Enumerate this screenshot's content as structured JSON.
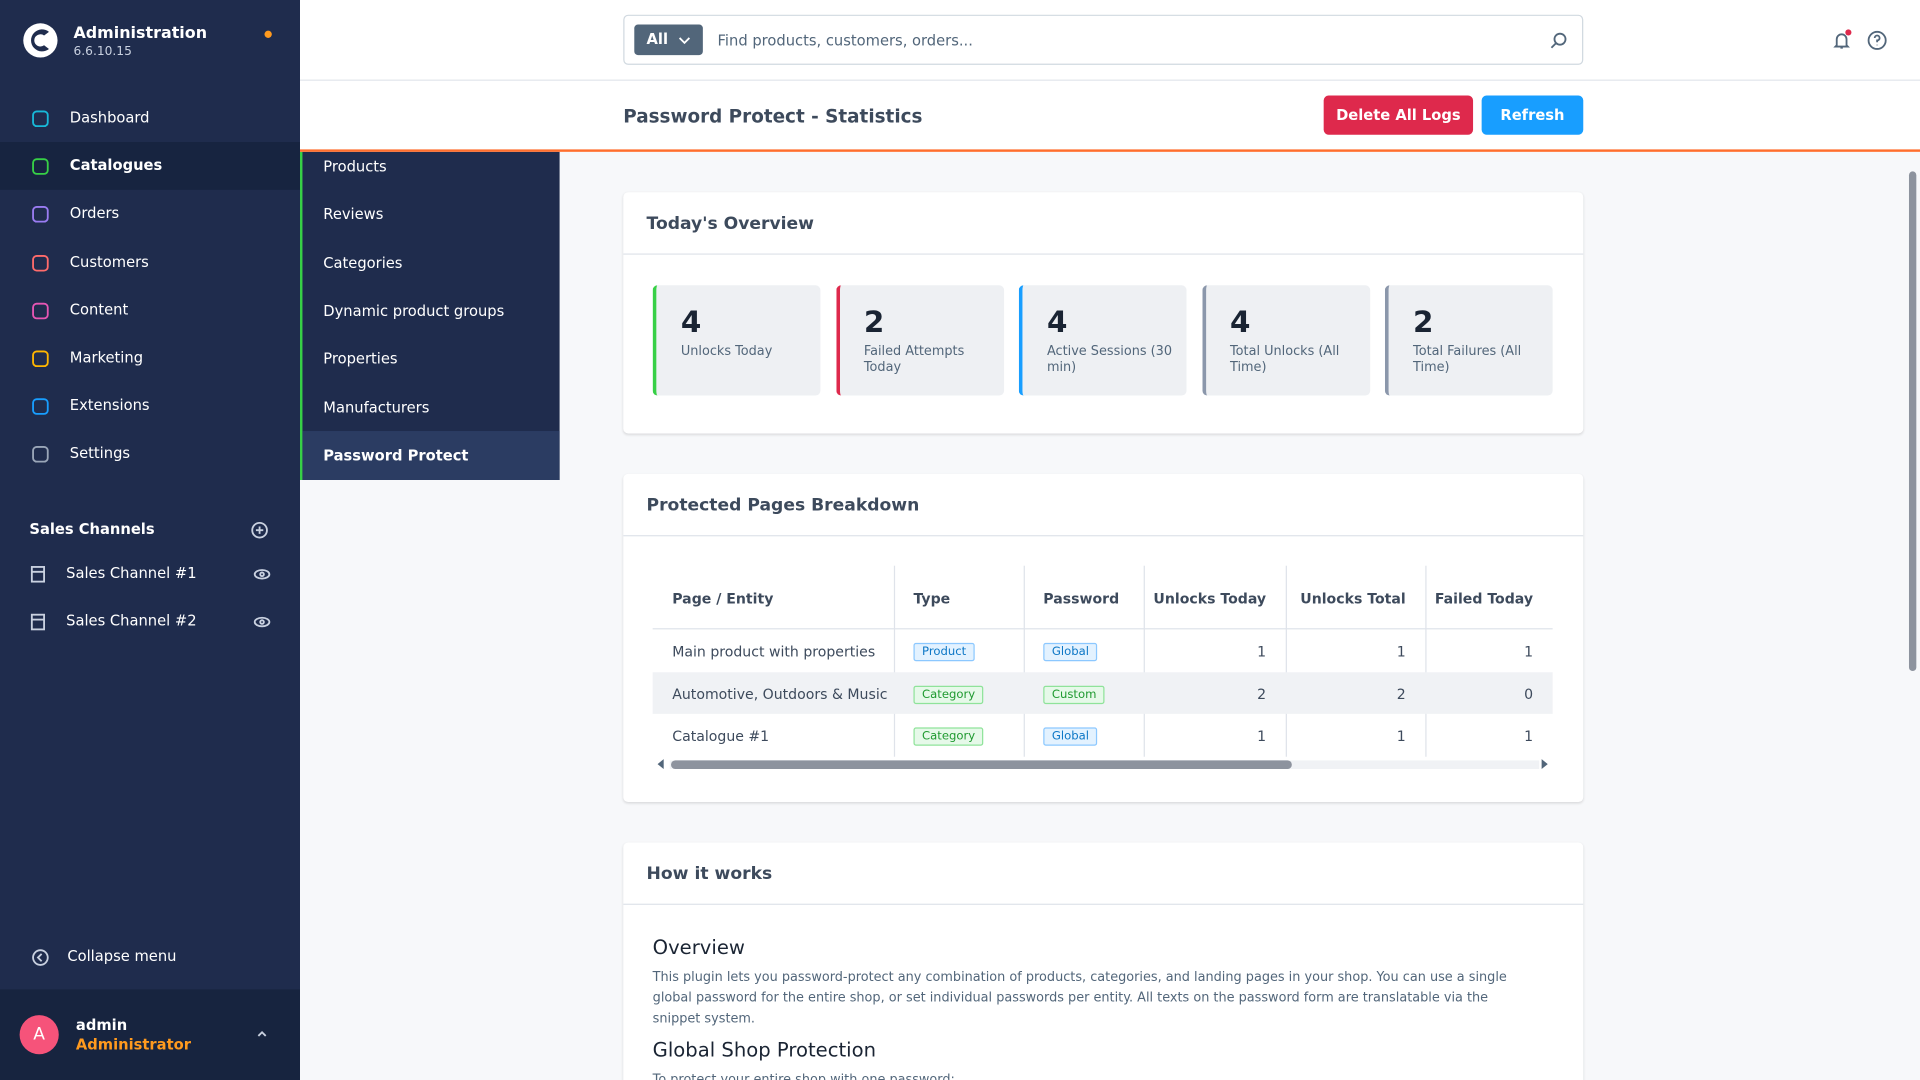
{
  "sidebar": {
    "app_name": "Administration",
    "version": "6.6.10.15",
    "nav": [
      "Dashboard",
      "Catalogues",
      "Orders",
      "Customers",
      "Content",
      "Marketing",
      "Extensions",
      "Settings"
    ],
    "sales_channels_title": "Sales Channels",
    "sales_channels": [
      "Sales Channel #1",
      "Sales Channel #2"
    ],
    "collapse": "Collapse menu",
    "user": {
      "initial": "A",
      "name": "admin",
      "role": "Administrator"
    }
  },
  "submenu": [
    "Products",
    "Reviews",
    "Categories",
    "Dynamic product groups",
    "Properties",
    "Manufacturers",
    "Password Protect"
  ],
  "search": {
    "filter": "All",
    "placeholder": "Find products, customers, orders..."
  },
  "page": {
    "title": "Password Protect - Statistics",
    "buttons": [
      "Delete All Logs",
      "Refresh"
    ]
  },
  "overview": {
    "title": "Today's Overview",
    "stats": [
      {
        "value": 4,
        "label": "Unlocks Today"
      },
      {
        "value": 2,
        "label": "Failed Attempts Today"
      },
      {
        "value": 4,
        "label": "Active Sessions (30 min)"
      },
      {
        "value": 4,
        "label": "Total Unlocks (All Time)"
      },
      {
        "value": 2,
        "label": "Total Failures (All Time)"
      }
    ]
  },
  "breakdown": {
    "title": "Protected Pages Breakdown",
    "columns": [
      "Page / Entity",
      "Type",
      "Password",
      "Unlocks Today",
      "Unlocks Total",
      "Failed Today"
    ],
    "rows": [
      [
        "Main product with properties",
        "Product",
        "Global",
        1,
        1,
        1
      ],
      [
        "Automotive, Outdoors & Music",
        "Category",
        "Custom",
        2,
        2,
        0
      ],
      [
        "Catalogue #1",
        "Category",
        "Global",
        1,
        1,
        1
      ]
    ]
  },
  "how": {
    "title": "How it works",
    "sections": [
      {
        "heading": "Overview",
        "text": "This plugin lets you password-protect any combination of products, categories, and landing pages in your shop. You can use a single global password for the entire shop, or set individual passwords per entity. All texts on the password form are translatable via the snippet system."
      },
      {
        "heading": "Global Shop Protection",
        "text": "To protect your entire shop with one password:"
      }
    ]
  }
}
